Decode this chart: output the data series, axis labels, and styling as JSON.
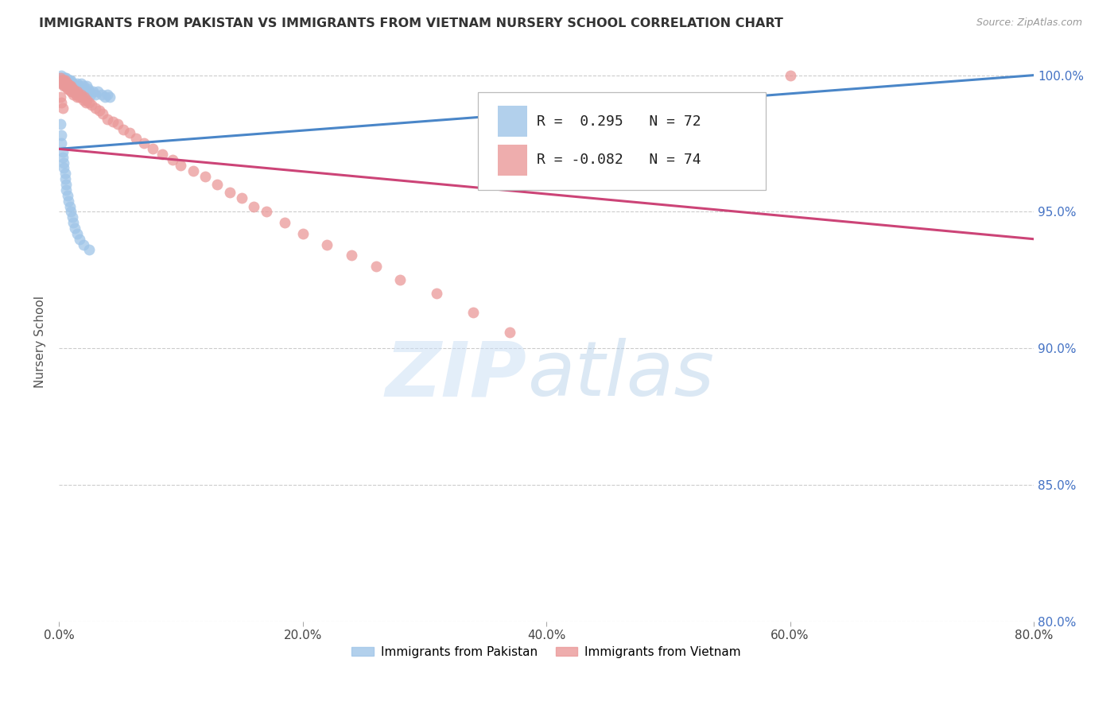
{
  "title": "IMMIGRANTS FROM PAKISTAN VS IMMIGRANTS FROM VIETNAM NURSERY SCHOOL CORRELATION CHART",
  "source": "Source: ZipAtlas.com",
  "xlabel": "",
  "ylabel": "Nursery School",
  "xlim": [
    0.0,
    0.8
  ],
  "ylim": [
    0.8,
    1.005
  ],
  "xtick_labels": [
    "0.0%",
    "20.0%",
    "40.0%",
    "60.0%",
    "80.0%"
  ],
  "xtick_vals": [
    0.0,
    0.2,
    0.4,
    0.6,
    0.8
  ],
  "ytick_labels": [
    "80.0%",
    "85.0%",
    "90.0%",
    "95.0%",
    "100.0%"
  ],
  "ytick_vals": [
    0.8,
    0.85,
    0.9,
    0.95,
    1.0
  ],
  "pakistan_R": 0.295,
  "pakistan_N": 72,
  "vietnam_R": -0.082,
  "vietnam_N": 74,
  "pakistan_color": "#9fc5e8",
  "vietnam_color": "#ea9999",
  "pakistan_line_color": "#4a86c8",
  "vietnam_line_color": "#cc4477",
  "pakistan_x": [
    0.001,
    0.002,
    0.002,
    0.003,
    0.003,
    0.003,
    0.004,
    0.004,
    0.004,
    0.005,
    0.005,
    0.005,
    0.006,
    0.006,
    0.006,
    0.007,
    0.007,
    0.008,
    0.008,
    0.009,
    0.009,
    0.01,
    0.01,
    0.011,
    0.011,
    0.012,
    0.012,
    0.013,
    0.013,
    0.014,
    0.015,
    0.015,
    0.016,
    0.017,
    0.018,
    0.019,
    0.02,
    0.021,
    0.022,
    0.023,
    0.024,
    0.025,
    0.026,
    0.028,
    0.03,
    0.032,
    0.035,
    0.038,
    0.04,
    0.042,
    0.001,
    0.002,
    0.002,
    0.003,
    0.003,
    0.004,
    0.004,
    0.005,
    0.005,
    0.006,
    0.006,
    0.007,
    0.008,
    0.009,
    0.01,
    0.011,
    0.012,
    0.013,
    0.015,
    0.017,
    0.02,
    0.025
  ],
  "pakistan_y": [
    0.999,
    0.998,
    1.0,
    0.999,
    0.998,
    0.997,
    0.999,
    0.998,
    0.997,
    0.999,
    0.998,
    0.997,
    0.999,
    0.998,
    0.997,
    0.998,
    0.996,
    0.998,
    0.997,
    0.998,
    0.996,
    0.998,
    0.996,
    0.997,
    0.995,
    0.997,
    0.995,
    0.996,
    0.994,
    0.996,
    0.997,
    0.994,
    0.996,
    0.995,
    0.997,
    0.995,
    0.996,
    0.995,
    0.994,
    0.996,
    0.995,
    0.994,
    0.993,
    0.994,
    0.993,
    0.994,
    0.993,
    0.992,
    0.993,
    0.992,
    0.982,
    0.978,
    0.975,
    0.972,
    0.97,
    0.968,
    0.966,
    0.964,
    0.962,
    0.96,
    0.958,
    0.956,
    0.954,
    0.952,
    0.95,
    0.948,
    0.946,
    0.944,
    0.942,
    0.94,
    0.938,
    0.936
  ],
  "vietnam_x": [
    0.001,
    0.002,
    0.002,
    0.003,
    0.003,
    0.004,
    0.004,
    0.004,
    0.005,
    0.005,
    0.005,
    0.006,
    0.006,
    0.007,
    0.007,
    0.007,
    0.008,
    0.008,
    0.009,
    0.009,
    0.01,
    0.01,
    0.011,
    0.011,
    0.012,
    0.012,
    0.013,
    0.014,
    0.015,
    0.015,
    0.016,
    0.017,
    0.018,
    0.019,
    0.02,
    0.021,
    0.022,
    0.023,
    0.025,
    0.027,
    0.03,
    0.033,
    0.036,
    0.04,
    0.044,
    0.048,
    0.053,
    0.058,
    0.063,
    0.07,
    0.077,
    0.085,
    0.093,
    0.1,
    0.11,
    0.12,
    0.13,
    0.14,
    0.15,
    0.16,
    0.17,
    0.185,
    0.2,
    0.22,
    0.24,
    0.26,
    0.28,
    0.31,
    0.34,
    0.37,
    0.6,
    0.001,
    0.002,
    0.003
  ],
  "vietnam_y": [
    0.999,
    0.998,
    0.997,
    0.998,
    0.997,
    0.998,
    0.997,
    0.996,
    0.998,
    0.997,
    0.996,
    0.997,
    0.996,
    0.997,
    0.996,
    0.995,
    0.996,
    0.995,
    0.996,
    0.995,
    0.996,
    0.994,
    0.995,
    0.994,
    0.995,
    0.993,
    0.994,
    0.993,
    0.994,
    0.992,
    0.993,
    0.992,
    0.993,
    0.992,
    0.991,
    0.992,
    0.99,
    0.991,
    0.99,
    0.989,
    0.988,
    0.987,
    0.986,
    0.984,
    0.983,
    0.982,
    0.98,
    0.979,
    0.977,
    0.975,
    0.973,
    0.971,
    0.969,
    0.967,
    0.965,
    0.963,
    0.96,
    0.957,
    0.955,
    0.952,
    0.95,
    0.946,
    0.942,
    0.938,
    0.934,
    0.93,
    0.925,
    0.92,
    0.913,
    0.906,
    1.0,
    0.992,
    0.99,
    0.988
  ]
}
